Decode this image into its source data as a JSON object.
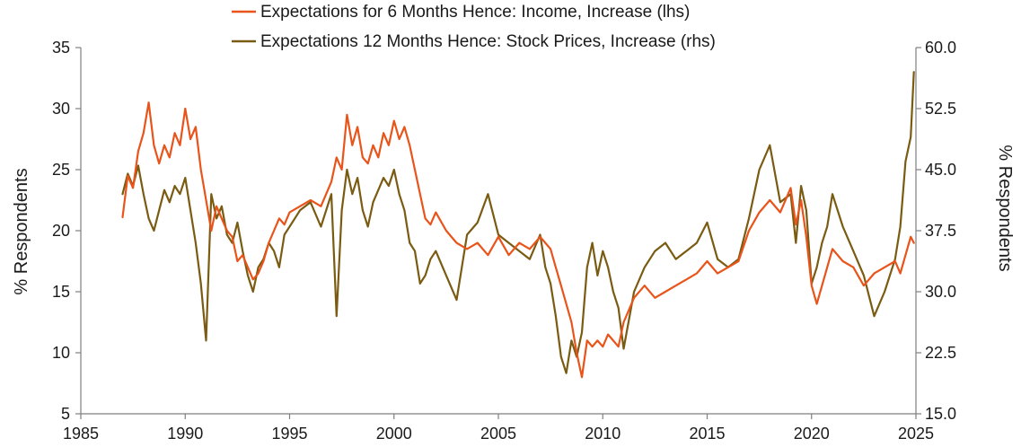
{
  "chart_data": {
    "type": "line",
    "xlim": [
      1985,
      2025
    ],
    "x_ticks": [
      "1985",
      "1990",
      "1995",
      "2000",
      "2005",
      "2010",
      "2015",
      "2020",
      "2025"
    ],
    "ylim_left": [
      5,
      35
    ],
    "y_ticks_left": [
      "5",
      "10",
      "15",
      "20",
      "25",
      "30",
      "35"
    ],
    "ylabel_left": "% Respondents",
    "ylim_right": [
      15,
      60
    ],
    "y_ticks_right": [
      "15.0",
      "22.5",
      "30.0",
      "37.5",
      "45.0",
      "52.5",
      "60.0"
    ],
    "ylabel_right": "% Respondents",
    "legend_position": "top-center",
    "grid": false,
    "series": [
      {
        "name": "Expectations for 6 Months Hence: Income, Increase (lhs)",
        "axis": "left",
        "color": "#e8541a",
        "x": [
          1987.0,
          1987.25,
          1987.5,
          1987.75,
          1988.0,
          1988.25,
          1988.5,
          1988.75,
          1989.0,
          1989.25,
          1989.5,
          1989.75,
          1990.0,
          1990.25,
          1990.5,
          1990.75,
          1991.0,
          1991.25,
          1991.5,
          1991.75,
          1992.0,
          1992.25,
          1992.5,
          1992.75,
          1993.0,
          1993.25,
          1993.5,
          1993.75,
          1994.0,
          1994.25,
          1994.5,
          1994.75,
          1995.0,
          1995.5,
          1996.0,
          1996.5,
          1997.0,
          1997.25,
          1997.5,
          1997.75,
          1998.0,
          1998.25,
          1998.5,
          1998.75,
          1999.0,
          1999.25,
          1999.5,
          1999.75,
          2000.0,
          2000.25,
          2000.5,
          2000.75,
          2001.0,
          2001.25,
          2001.5,
          2001.75,
          2002.0,
          2002.5,
          2003.0,
          2003.5,
          2004.0,
          2004.5,
          2005.0,
          2005.5,
          2006.0,
          2006.5,
          2007.0,
          2007.25,
          2007.5,
          2007.75,
          2008.0,
          2008.25,
          2008.5,
          2008.75,
          2009.0,
          2009.25,
          2009.5,
          2009.75,
          2010.0,
          2010.25,
          2010.5,
          2010.75,
          2011.0,
          2011.5,
          2012.0,
          2012.5,
          2013.0,
          2013.5,
          2014.0,
          2014.5,
          2015.0,
          2015.5,
          2016.0,
          2016.5,
          2017.0,
          2017.5,
          2018.0,
          2018.5,
          2019.0,
          2019.25,
          2019.5,
          2019.75,
          2020.0,
          2020.25,
          2020.5,
          2020.75,
          2021.0,
          2021.5,
          2022.0,
          2022.5,
          2023.0,
          2023.5,
          2024.0,
          2024.25,
          2024.5,
          2024.75,
          2024.9
        ],
        "values": [
          21.1,
          24.5,
          23.5,
          26.5,
          28.0,
          30.5,
          27.0,
          25.5,
          27.0,
          26.0,
          28.0,
          27.0,
          30.0,
          27.5,
          28.5,
          25.0,
          22.5,
          20.0,
          22.0,
          21.0,
          20.0,
          19.5,
          17.5,
          18.0,
          17.0,
          16.0,
          16.5,
          17.5,
          19.0,
          20.0,
          21.0,
          20.5,
          21.5,
          22.0,
          22.5,
          22.0,
          24.0,
          26.0,
          25.0,
          29.5,
          27.0,
          28.5,
          26.0,
          25.5,
          27.0,
          26.0,
          28.0,
          27.0,
          29.0,
          27.5,
          28.5,
          27.0,
          25.0,
          23.0,
          21.0,
          20.5,
          21.5,
          20.0,
          19.0,
          18.5,
          19.0,
          18.0,
          19.5,
          18.0,
          19.0,
          18.5,
          19.5,
          19.0,
          18.5,
          17.0,
          15.5,
          14.0,
          12.5,
          10.0,
          8.0,
          11.0,
          10.5,
          11.0,
          10.5,
          11.5,
          11.0,
          10.5,
          12.5,
          14.5,
          15.5,
          14.5,
          15.0,
          15.5,
          16.0,
          16.5,
          17.5,
          16.5,
          17.0,
          17.5,
          20.0,
          21.5,
          22.5,
          21.5,
          23.5,
          20.5,
          22.5,
          19.5,
          15.5,
          14.0,
          15.5,
          17.0,
          18.5,
          17.5,
          17.0,
          15.5,
          16.5,
          17.0,
          17.5,
          16.5,
          18.0,
          19.5,
          19.0
        ]
      },
      {
        "name": "Expectations 12 Months Hence: Stock Prices, Increase (rhs)",
        "axis": "right",
        "color": "#7a5b12",
        "x": [
          1987.0,
          1987.25,
          1987.5,
          1987.75,
          1988.0,
          1988.25,
          1988.5,
          1988.75,
          1989.0,
          1989.25,
          1989.5,
          1989.75,
          1990.0,
          1990.25,
          1990.5,
          1990.75,
          1991.0,
          1991.25,
          1991.5,
          1991.75,
          1992.0,
          1992.25,
          1992.5,
          1992.75,
          1993.0,
          1993.25,
          1993.5,
          1993.75,
          1994.0,
          1994.25,
          1994.5,
          1994.75,
          1995.0,
          1995.5,
          1996.0,
          1996.5,
          1997.0,
          1997.25,
          1997.5,
          1997.75,
          1998.0,
          1998.25,
          1998.5,
          1998.75,
          1999.0,
          1999.25,
          1999.5,
          1999.75,
          2000.0,
          2000.25,
          2000.5,
          2000.75,
          2001.0,
          2001.25,
          2001.5,
          2001.75,
          2002.0,
          2002.5,
          2003.0,
          2003.5,
          2004.0,
          2004.5,
          2005.0,
          2005.5,
          2006.0,
          2006.5,
          2007.0,
          2007.25,
          2007.5,
          2007.75,
          2008.0,
          2008.25,
          2008.5,
          2008.75,
          2009.0,
          2009.25,
          2009.5,
          2009.75,
          2010.0,
          2010.25,
          2010.5,
          2010.75,
          2011.0,
          2011.5,
          2012.0,
          2012.5,
          2013.0,
          2013.5,
          2014.0,
          2014.5,
          2015.0,
          2015.5,
          2016.0,
          2016.5,
          2017.0,
          2017.5,
          2018.0,
          2018.5,
          2019.0,
          2019.25,
          2019.5,
          2019.75,
          2020.0,
          2020.25,
          2020.5,
          2020.75,
          2021.0,
          2021.5,
          2022.0,
          2022.5,
          2023.0,
          2023.5,
          2024.0,
          2024.25,
          2024.5,
          2024.75,
          2024.9
        ],
        "values": [
          42.0,
          44.5,
          43.0,
          45.5,
          42.0,
          39.0,
          37.5,
          40.0,
          42.5,
          41.0,
          43.0,
          42.0,
          44.0,
          40.0,
          36.0,
          31.0,
          24.0,
          42.0,
          39.0,
          40.5,
          37.0,
          36.0,
          38.5,
          35.0,
          32.0,
          30.0,
          33.0,
          34.0,
          36.0,
          35.0,
          33.0,
          37.0,
          38.0,
          40.0,
          41.0,
          38.0,
          42.0,
          27.0,
          40.0,
          45.0,
          42.0,
          44.0,
          40.0,
          38.0,
          41.0,
          42.5,
          44.0,
          43.0,
          45.0,
          42.0,
          40.0,
          36.0,
          35.0,
          31.0,
          32.0,
          34.0,
          35.0,
          32.0,
          29.0,
          37.0,
          38.5,
          42.0,
          37.0,
          36.0,
          35.0,
          34.0,
          37.0,
          33.0,
          31.0,
          27.0,
          22.0,
          20.0,
          24.0,
          22.0,
          25.0,
          33.0,
          36.0,
          32.0,
          35.0,
          33.0,
          30.0,
          28.0,
          23.0,
          30.0,
          33.0,
          35.0,
          36.0,
          34.0,
          35.0,
          36.0,
          38.5,
          34.0,
          33.0,
          34.0,
          39.0,
          45.0,
          48.0,
          41.0,
          42.0,
          36.0,
          43.0,
          40.0,
          31.0,
          33.0,
          36.0,
          38.0,
          42.0,
          38.0,
          35.0,
          32.0,
          27.0,
          30.0,
          34.0,
          38.0,
          46.0,
          49.0,
          57.0
        ]
      }
    ]
  }
}
